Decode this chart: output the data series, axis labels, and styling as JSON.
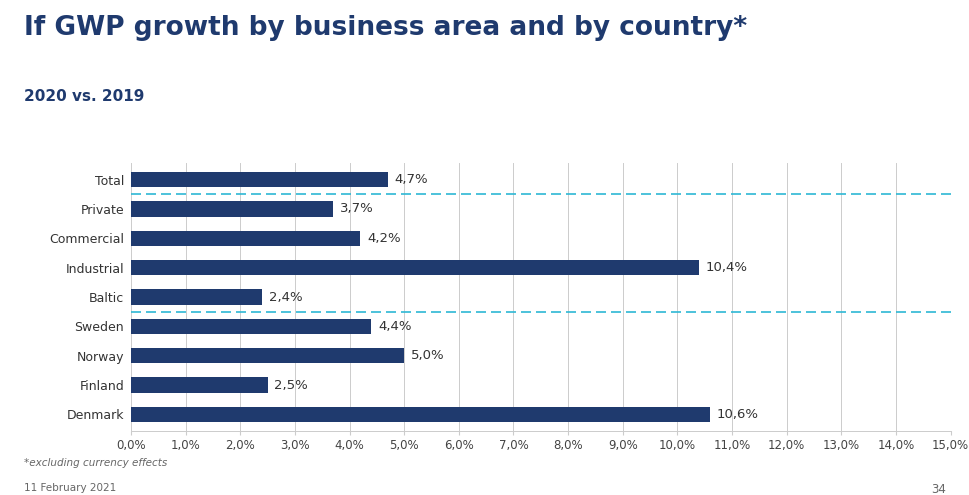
{
  "title": "If GWP growth by business area and by country*",
  "subtitle": "2020 vs. 2019",
  "categories": [
    "Total",
    "Private",
    "Commercial",
    "Industrial",
    "Baltic",
    "Sweden",
    "Norway",
    "Finland",
    "Denmark"
  ],
  "values": [
    4.7,
    3.7,
    4.2,
    10.4,
    2.4,
    4.4,
    5.0,
    2.5,
    10.6
  ],
  "labels": [
    "4,7%",
    "3,7%",
    "4,2%",
    "10,4%",
    "2,4%",
    "4,4%",
    "5,0%",
    "2,5%",
    "10,6%"
  ],
  "bar_color": "#1f3a6e",
  "background_color": "#ffffff",
  "dashed_line_color": "#2eb8d4",
  "grid_color": "#cccccc",
  "title_color": "#1f3a6e",
  "subtitle_color": "#1f3a6e",
  "footnote": "*excluding currency effects",
  "date_text": "11 February 2021",
  "page_number": "34",
  "xlim": [
    0,
    15
  ],
  "xtick_values": [
    0,
    1,
    2,
    3,
    4,
    5,
    6,
    7,
    8,
    9,
    10,
    11,
    12,
    13,
    14,
    15
  ],
  "xtick_labels": [
    "0,0%",
    "1,0%",
    "2,0%",
    "3,0%",
    "4,0%",
    "5,0%",
    "6,0%",
    "7,0%",
    "8,0%",
    "9,0%",
    "10,0%",
    "11,0%",
    "12,0%",
    "13,0%",
    "14,0%",
    "15,0%"
  ],
  "bar_height": 0.52,
  "title_fontsize": 19,
  "subtitle_fontsize": 11,
  "label_fontsize": 9.5,
  "tick_fontsize": 8.5,
  "footnote_fontsize": 7.5
}
